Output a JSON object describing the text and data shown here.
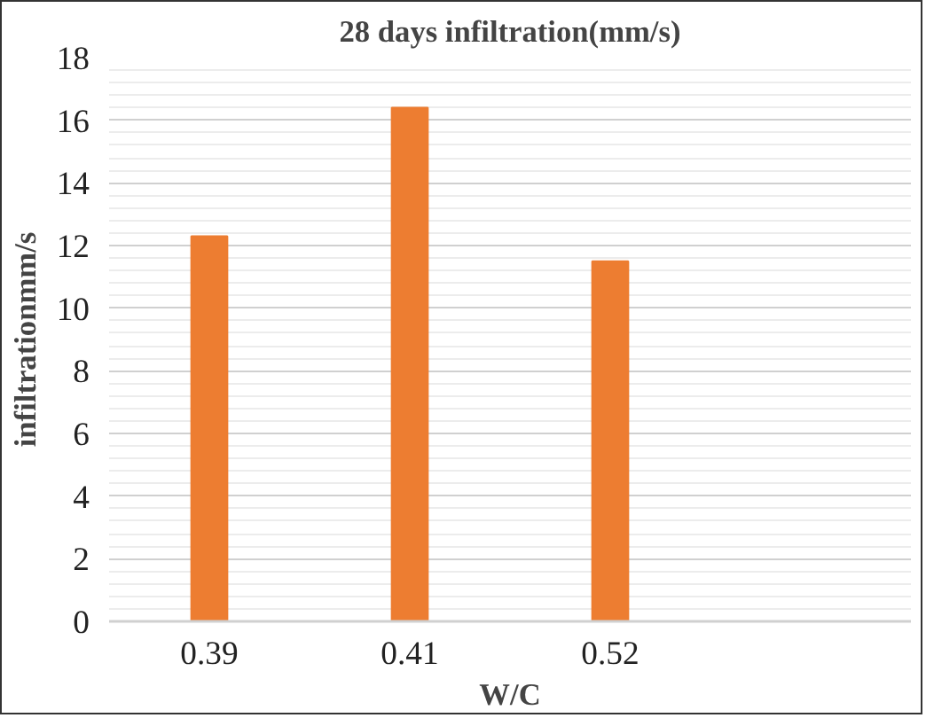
{
  "chart_data": {
    "type": "bar",
    "title": "28 days infiltration(mm/s)",
    "xlabel": "W/C",
    "ylabel": "infiltrationmm/s",
    "categories": [
      "0.39",
      "0.41",
      "0.52",
      null
    ],
    "values": [
      12.3,
      16.4,
      11.5,
      null
    ],
    "color": "#ed7d31",
    "ylim": [
      0,
      18
    ],
    "yticks": [
      0,
      {
        "value": 0.4,
        "label": null
      },
      {
        "value": 0.8,
        "label": null
      },
      {
        "value": 1.2,
        "label": null
      },
      {
        "value": 1.6,
        "label": null
      },
      2,
      {
        "value": 2.4,
        "label": null
      },
      {
        "value": 2.8,
        "label": null
      },
      {
        "value": 3.2,
        "label": null
      },
      {
        "value": 3.6,
        "label": null
      },
      4,
      {
        "value": 4.4,
        "label": null
      },
      {
        "value": 4.8,
        "label": null
      },
      {
        "value": 5.2,
        "label": null
      },
      {
        "value": 5.6,
        "label": null
      },
      6,
      {
        "value": 6.4,
        "label": null
      },
      {
        "value": 6.8,
        "label": null
      },
      {
        "value": 7.2,
        "label": null
      },
      {
        "value": 7.6,
        "label": null
      },
      8,
      {
        "value": 8.4,
        "label": null
      },
      {
        "value": 8.8,
        "label": null
      },
      {
        "value": 9.2,
        "label": null
      },
      {
        "value": 9.6,
        "label": null
      },
      10,
      {
        "value": 10.4,
        "label": null
      },
      {
        "value": 10.8,
        "label": null
      },
      {
        "value": 11.2,
        "label": null
      },
      {
        "value": 11.6,
        "label": null
      },
      12,
      {
        "value": 12.4,
        "label": null
      },
      {
        "value": 12.8,
        "label": null
      },
      {
        "value": 13.2,
        "label": null
      },
      {
        "value": 13.6,
        "label": null
      },
      14,
      {
        "value": 14.4,
        "label": null
      },
      {
        "value": 14.8,
        "label": null
      },
      {
        "value": 15.2,
        "label": null
      },
      {
        "value": 15.6,
        "label": null
      },
      16,
      {
        "value": 16.4,
        "label": null
      },
      {
        "value": 16.8,
        "label": null
      },
      {
        "value": 17.2,
        "label": null
      },
      {
        "value": 17.6,
        "label": null
      },
      18
    ],
    "grid": "y"
  }
}
